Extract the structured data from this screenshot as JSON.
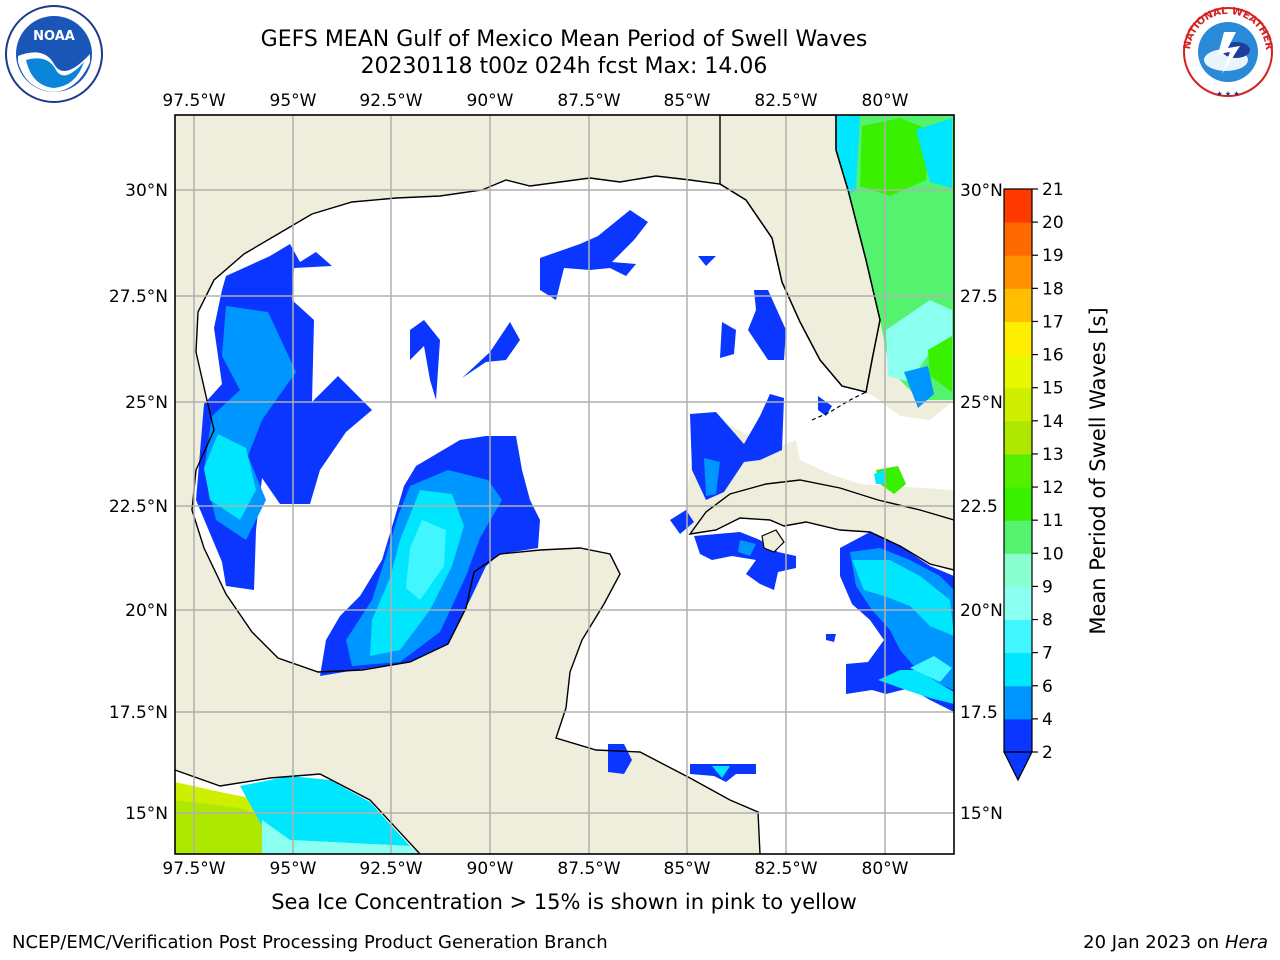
{
  "title_line1": "GEFS MEAN Gulf of Mexico Mean Period of Swell Waves",
  "title_line2": "20230118 t00z 024h fcst   Max: 14.06",
  "footnote": "Sea Ice Concentration > 15% is shown in pink to yellow",
  "footer_left": "NCEP/EMC/Verification Post Processing Product Generation Branch",
  "footer_right_date": "20 Jan 2023 on",
  "footer_right_host": "Hera",
  "map": {
    "lon_ticks": [
      "97.5°W",
      "95°W",
      "92.5°W",
      "90°W",
      "87.5°W",
      "85°W",
      "82.5°W",
      "80°W"
    ],
    "lat_ticks_left": [
      "30°N",
      "27.5°N",
      "25°N",
      "22.5°N",
      "20°N",
      "17.5°N",
      "15°N"
    ],
    "lat_ticks_right": [
      "30°N",
      "27.5",
      "25°N",
      "22.5",
      "20°N",
      "17.5",
      "15°N"
    ],
    "land_color": "#efeedc",
    "ocean_color": "#ffffff",
    "grid_color": "#b0b0b0"
  },
  "colorbar": {
    "label": "Mean Period of Swell Waves [s]",
    "ticks": [
      "2",
      "4",
      "6",
      "7",
      "8",
      "9",
      "10",
      "11",
      "12",
      "13",
      "14",
      "15",
      "16",
      "17",
      "18",
      "19",
      "20",
      "21"
    ],
    "colors": [
      "#0a36ff",
      "#0096ff",
      "#00e6ff",
      "#42f6ff",
      "#8bfff0",
      "#8affd0",
      "#55f26f",
      "#38f000",
      "#54f000",
      "#aee800",
      "#cef000",
      "#e8f800",
      "#ffee00",
      "#ffbe00",
      "#ff9000",
      "#ff6a00",
      "#ff3a00",
      "#ff0000"
    ],
    "extend": "min"
  },
  "logos": {
    "noaa_text": "NOAA",
    "nws_text": "NATIONAL WEATHER SERVICE"
  }
}
